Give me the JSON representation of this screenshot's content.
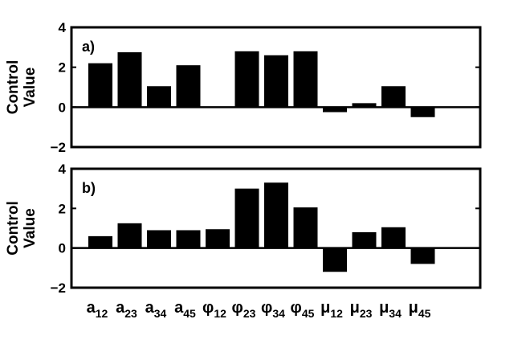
{
  "chart_data": [
    {
      "type": "bar",
      "panel_label": "a)",
      "ylabel_lines": [
        "Control",
        "Value"
      ],
      "ylim": [
        -2,
        4
      ],
      "yticks": [
        "4",
        "2",
        "0",
        "−2"
      ],
      "ytick_values": [
        4,
        2,
        0,
        -2
      ],
      "grid": false,
      "categories": [
        "a12",
        "a23",
        "a34",
        "a45",
        "φ12",
        "φ23",
        "φ34",
        "φ45",
        "μ12",
        "μ23",
        "μ34",
        "μ45"
      ],
      "values": [
        2.2,
        2.75,
        1.05,
        2.1,
        0.0,
        2.8,
        2.6,
        2.8,
        -0.25,
        0.2,
        1.05,
        -0.5
      ]
    },
    {
      "type": "bar",
      "panel_label": "b)",
      "ylabel_lines": [
        "Control",
        "Value"
      ],
      "ylim": [
        -2,
        4
      ],
      "yticks": [
        "4",
        "2",
        "0",
        "−2"
      ],
      "ytick_values": [
        4,
        2,
        0,
        -2
      ],
      "grid": false,
      "categories": [
        "a12",
        "a23",
        "a34",
        "a45",
        "φ12",
        "φ23",
        "φ34",
        "φ45",
        "μ12",
        "μ23",
        "μ34",
        "μ45"
      ],
      "values": [
        0.6,
        1.25,
        0.9,
        0.9,
        0.95,
        3.0,
        3.3,
        2.05,
        -1.2,
        0.8,
        1.05,
        -0.8
      ]
    }
  ],
  "x_tick_labels": [
    {
      "main": "a",
      "sub": "12"
    },
    {
      "main": "a",
      "sub": "23"
    },
    {
      "main": "a",
      "sub": "34"
    },
    {
      "main": "a",
      "sub": "45"
    },
    {
      "main": "φ",
      "sub": "12"
    },
    {
      "main": "φ",
      "sub": "23"
    },
    {
      "main": "φ",
      "sub": "34"
    },
    {
      "main": "φ",
      "sub": "45"
    },
    {
      "main": "μ",
      "sub": "12"
    },
    {
      "main": "μ",
      "sub": "23"
    },
    {
      "main": "μ",
      "sub": "34"
    },
    {
      "main": "μ",
      "sub": "45"
    }
  ],
  "colors": {
    "bar": "#000000",
    "axis": "#000000",
    "background": "#ffffff"
  }
}
